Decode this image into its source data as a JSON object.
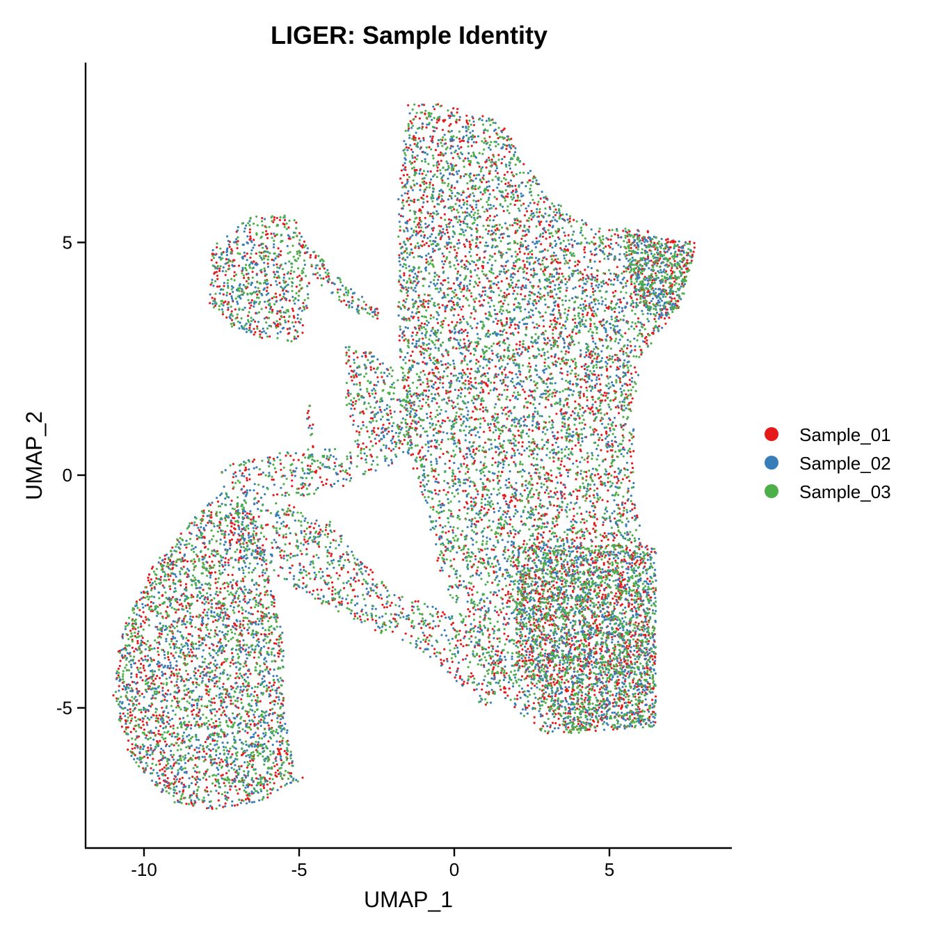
{
  "chart_data": {
    "type": "scatter",
    "title": "LIGER: Sample Identity",
    "xlabel": "UMAP_1",
    "ylabel": "UMAP_2",
    "xlim": [
      -12,
      9
    ],
    "ylim": [
      -8,
      8.8
    ],
    "x_ticks": [
      -10,
      -5,
      0,
      5
    ],
    "x_tick_labels": [
      "-10",
      "-5",
      "0",
      "5"
    ],
    "y_ticks": [
      -5,
      0,
      5
    ],
    "y_tick_labels": [
      "-5",
      "0",
      "5"
    ],
    "grid": false,
    "legend_position": "right",
    "point_draw_order": [
      "Sample_01",
      "Sample_02",
      "Sample_03"
    ],
    "series": [
      {
        "name": "Sample_01",
        "color": "#E41A1C"
      },
      {
        "name": "Sample_02",
        "color": "#377EB8"
      },
      {
        "name": "Sample_03",
        "color": "#4DAF4A"
      }
    ],
    "clusters": [
      {
        "region": "upper-right lobe",
        "polygon": [
          [
            -1.5,
            8.0
          ],
          [
            -0.5,
            8.0
          ],
          [
            1.5,
            7.6
          ],
          [
            3.0,
            6.0
          ],
          [
            4.5,
            5.3
          ],
          [
            6.0,
            5.3
          ],
          [
            7.8,
            4.9
          ],
          [
            7.2,
            3.6
          ],
          [
            6.0,
            2.5
          ],
          [
            5.8,
            1.5
          ],
          [
            5.8,
            -0.3
          ],
          [
            6.2,
            -2.0
          ],
          [
            6.5,
            -3.5
          ],
          [
            6.5,
            -5.4
          ],
          [
            4.5,
            -5.5
          ],
          [
            3.0,
            -5.6
          ],
          [
            1.5,
            -4.8
          ],
          [
            0.3,
            -3.3
          ],
          [
            -0.5,
            -2.0
          ],
          [
            -1.0,
            -0.5
          ],
          [
            -1.5,
            0.5
          ],
          [
            -1.8,
            3.0
          ],
          [
            -1.8,
            6.0
          ]
        ],
        "counts": [
          2600,
          2600,
          2800
        ]
      },
      {
        "region": "lower-right dense region",
        "polygon": [
          [
            2.0,
            -1.5
          ],
          [
            6.5,
            -1.5
          ],
          [
            6.5,
            -5.4
          ],
          [
            3.5,
            -5.5
          ],
          [
            2.0,
            -4.0
          ]
        ],
        "counts": [
          700,
          700,
          800
        ]
      },
      {
        "region": "right wing",
        "polygon": [
          [
            5.5,
            5.2
          ],
          [
            7.8,
            5.0
          ],
          [
            7.3,
            3.6
          ],
          [
            6.5,
            3.3
          ],
          [
            5.8,
            4.0
          ]
        ],
        "counts": [
          150,
          150,
          180
        ]
      },
      {
        "region": "lower-left lobe",
        "polygon": [
          [
            -10.8,
            -3.5
          ],
          [
            -9.8,
            -2.0
          ],
          [
            -8.5,
            -1.0
          ],
          [
            -7.5,
            -0.3
          ],
          [
            -6.5,
            -0.8
          ],
          [
            -6.0,
            -2.0
          ],
          [
            -5.5,
            -3.5
          ],
          [
            -5.5,
            -5.0
          ],
          [
            -5.2,
            -6.2
          ],
          [
            -4.8,
            -6.5
          ],
          [
            -6.2,
            -7.0
          ],
          [
            -7.8,
            -7.2
          ],
          [
            -9.2,
            -7.0
          ],
          [
            -10.5,
            -6.0
          ],
          [
            -11.0,
            -4.8
          ]
        ],
        "counts": [
          1100,
          1100,
          1200
        ]
      },
      {
        "region": "upper-left lobe",
        "polygon": [
          [
            -7.8,
            4.9
          ],
          [
            -6.5,
            5.6
          ],
          [
            -5.2,
            5.6
          ],
          [
            -4.6,
            4.8
          ],
          [
            -4.7,
            3.8
          ],
          [
            -4.9,
            2.8
          ],
          [
            -6.0,
            2.9
          ],
          [
            -7.2,
            3.2
          ],
          [
            -7.9,
            3.7
          ]
        ],
        "counts": [
          230,
          230,
          260
        ]
      },
      {
        "region": "central link",
        "polygon": [
          [
            -3.5,
            2.8
          ],
          [
            -2.5,
            2.6
          ],
          [
            -1.5,
            2.0
          ],
          [
            -1.0,
            1.0
          ],
          [
            -2.0,
            0.2
          ],
          [
            -3.0,
            0.0
          ],
          [
            -3.5,
            1.5
          ]
        ],
        "counts": [
          120,
          120,
          130
        ]
      },
      {
        "region": "lower bridge",
        "polygon": [
          [
            -7.0,
            -0.2
          ],
          [
            -4.0,
            -1.0
          ],
          [
            -2.0,
            -2.5
          ],
          [
            0.0,
            -3.0
          ],
          [
            2.0,
            -4.5
          ],
          [
            1.0,
            -5.0
          ],
          [
            -1.0,
            -3.8
          ],
          [
            -3.0,
            -3.2
          ],
          [
            -5.0,
            -2.5
          ],
          [
            -7.0,
            -1.5
          ]
        ],
        "counts": [
          260,
          260,
          280
        ]
      },
      {
        "region": "left bridge",
        "polygon": [
          [
            -7.5,
            0.2
          ],
          [
            -5.5,
            0.5
          ],
          [
            -3.5,
            0.6
          ],
          [
            -3.0,
            0.3
          ],
          [
            -3.5,
            -0.3
          ],
          [
            -5.5,
            -0.5
          ],
          [
            -7.5,
            -0.3
          ]
        ],
        "counts": [
          70,
          70,
          80
        ]
      },
      {
        "region": "upper-left to center arm",
        "polygon": [
          [
            -4.6,
            4.9
          ],
          [
            -3.8,
            4.3
          ],
          [
            -2.5,
            3.6
          ],
          [
            -2.3,
            3.3
          ],
          [
            -3.2,
            3.5
          ],
          [
            -4.6,
            4.2
          ]
        ],
        "counts": [
          35,
          35,
          40
        ]
      },
      {
        "region": "vertical filament",
        "polygon": [
          [
            -4.75,
            1.5
          ],
          [
            -4.55,
            1.5
          ],
          [
            -4.55,
            0.0
          ],
          [
            -4.75,
            0.0
          ]
        ],
        "counts": [
          10,
          10,
          12
        ]
      }
    ]
  }
}
